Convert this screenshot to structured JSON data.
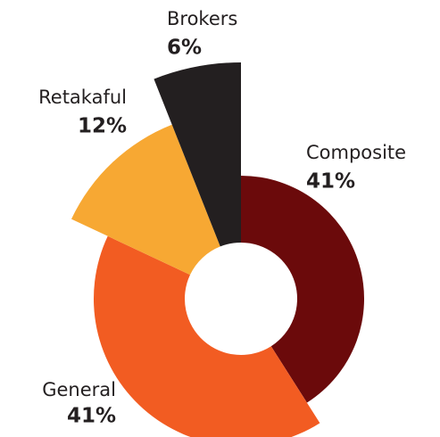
{
  "chart_data": {
    "type": "pie",
    "categories": [
      "Composite",
      "General",
      "Retakaful",
      "Brokers"
    ],
    "values": [
      41,
      41,
      12,
      6
    ],
    "value_labels": [
      "41%",
      "41%",
      "12%",
      "6%"
    ],
    "colors": [
      "#6b0a0b",
      "#f25c22",
      "#f7a833",
      "#231f20"
    ]
  }
}
